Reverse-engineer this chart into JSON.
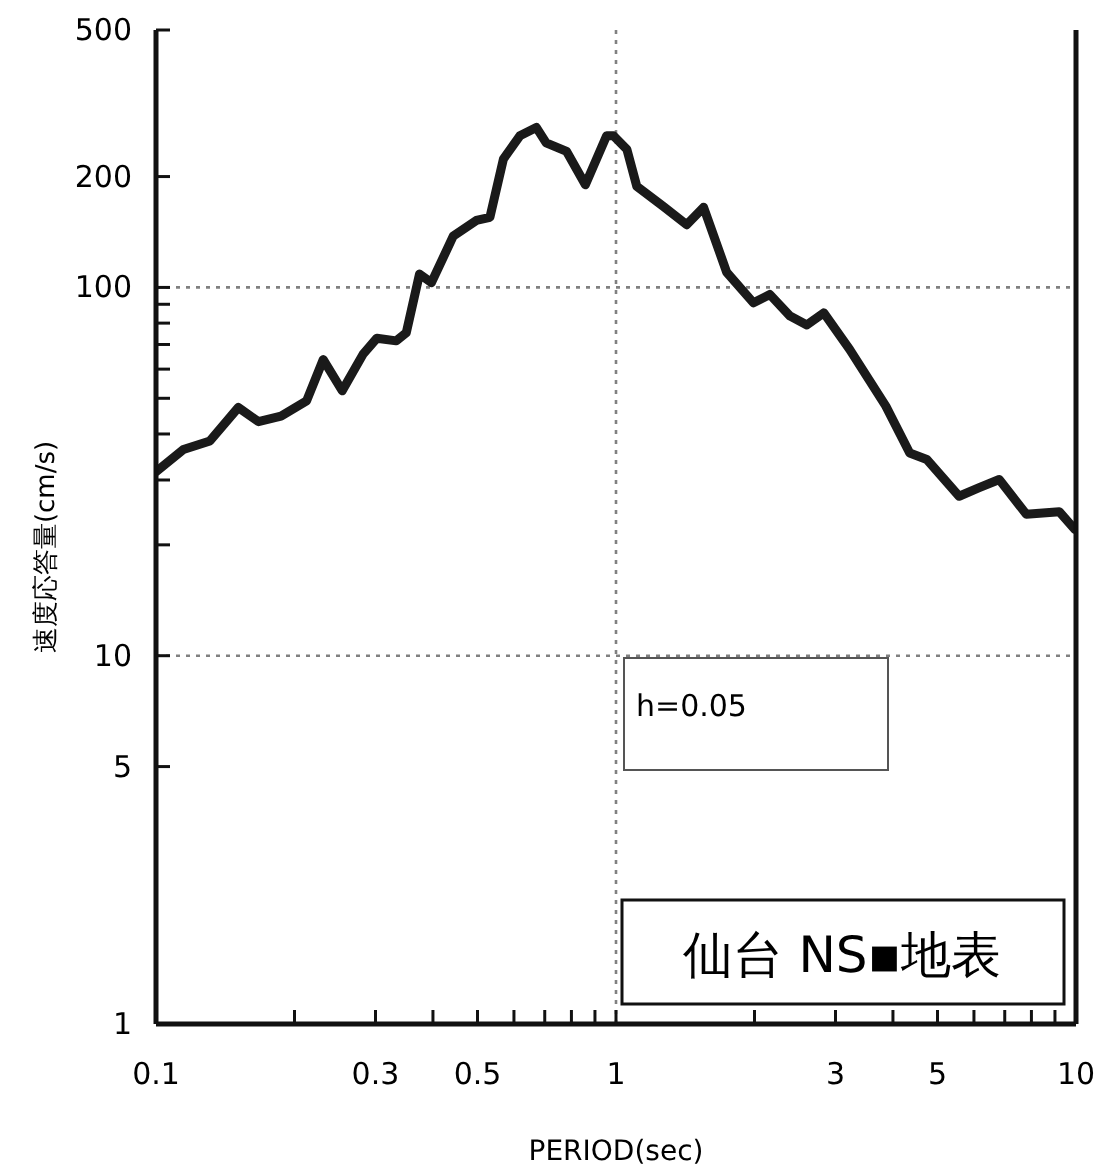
{
  "chart_data": {
    "type": "line",
    "title": "仙台 NS▪地表",
    "xlabel": "PERIOD(sec)",
    "ylabel": "速度応答量(cm/s)",
    "log": "xy",
    "grid": false,
    "marker": "none",
    "line_style": "solid",
    "annotations": [
      "h=0.05"
    ],
    "xlim": [
      0.1,
      10
    ],
    "ylim": [
      1,
      500
    ],
    "xticks": [
      0.1,
      {
        "value": 0.2,
        "label": null
      },
      0.3,
      {
        "value": 0.4,
        "label": null
      },
      0.5,
      {
        "value": 0.6,
        "label": null
      },
      {
        "value": 0.7,
        "label": null
      },
      {
        "value": 0.8,
        "label": null
      },
      {
        "value": 0.9,
        "label": null
      },
      1,
      {
        "value": 2,
        "label": null
      },
      3,
      {
        "value": 4,
        "label": null
      },
      5,
      {
        "value": 6,
        "label": null
      },
      {
        "value": 7,
        "label": null
      },
      {
        "value": 8,
        "label": null
      },
      {
        "value": 9,
        "label": null
      },
      10
    ],
    "yticks": [
      1,
      5,
      10,
      {
        "value": 20,
        "label": null
      },
      {
        "value": 30,
        "label": null
      },
      {
        "value": 40,
        "label": null
      },
      {
        "value": 50,
        "label": null
      },
      {
        "value": 60,
        "label": null
      },
      {
        "value": 70,
        "label": null
      },
      {
        "value": 80,
        "label": null
      },
      {
        "value": 90,
        "label": null
      },
      100,
      200,
      500
    ],
    "ref_lines": [
      {
        "axis": "y",
        "value": 10,
        "color": "#808080",
        "line_style": "dotted"
      },
      {
        "axis": "y",
        "value": 100,
        "color": "#808080",
        "line_style": "dotted"
      },
      {
        "axis": "x",
        "value": 1,
        "color": "#808080",
        "line_style": "dotted"
      }
    ],
    "series": [
      {
        "color": "#1a1a1a",
        "x": [
          0.1,
          0.1147,
          0.131,
          0.151,
          0.167,
          0.187,
          0.2125,
          0.231,
          0.254,
          0.282,
          0.302,
          0.333,
          0.35,
          0.374,
          0.397,
          0.443,
          0.497,
          0.532,
          0.569,
          0.618,
          0.671,
          0.705,
          0.781,
          0.858,
          0.954,
          0.988,
          1.056,
          1.11,
          1.267,
          1.425,
          1.55,
          1.74,
          1.99,
          2.16,
          2.39,
          2.6,
          2.83,
          3.22,
          3.86,
          4.35,
          4.74,
          5.57,
          6.16,
          6.81,
          7.8,
          9.2,
          9.95
        ],
        "values": [
          31.6,
          36.3,
          38.3,
          47.2,
          43.2,
          44.7,
          49.2,
          63.7,
          52.4,
          65.9,
          72.8,
          71.6,
          75.3,
          108.7,
          103,
          138,
          152,
          155,
          223,
          258,
          272,
          247,
          234,
          190,
          258,
          258,
          237,
          188,
          166,
          148,
          165,
          110,
          90.8,
          95.7,
          83.6,
          79.1,
          85.3,
          67.9,
          47.6,
          35.5,
          34.1,
          27.1,
          28.6,
          30.1,
          24.2,
          24.6,
          22.0
        ]
      }
    ]
  }
}
